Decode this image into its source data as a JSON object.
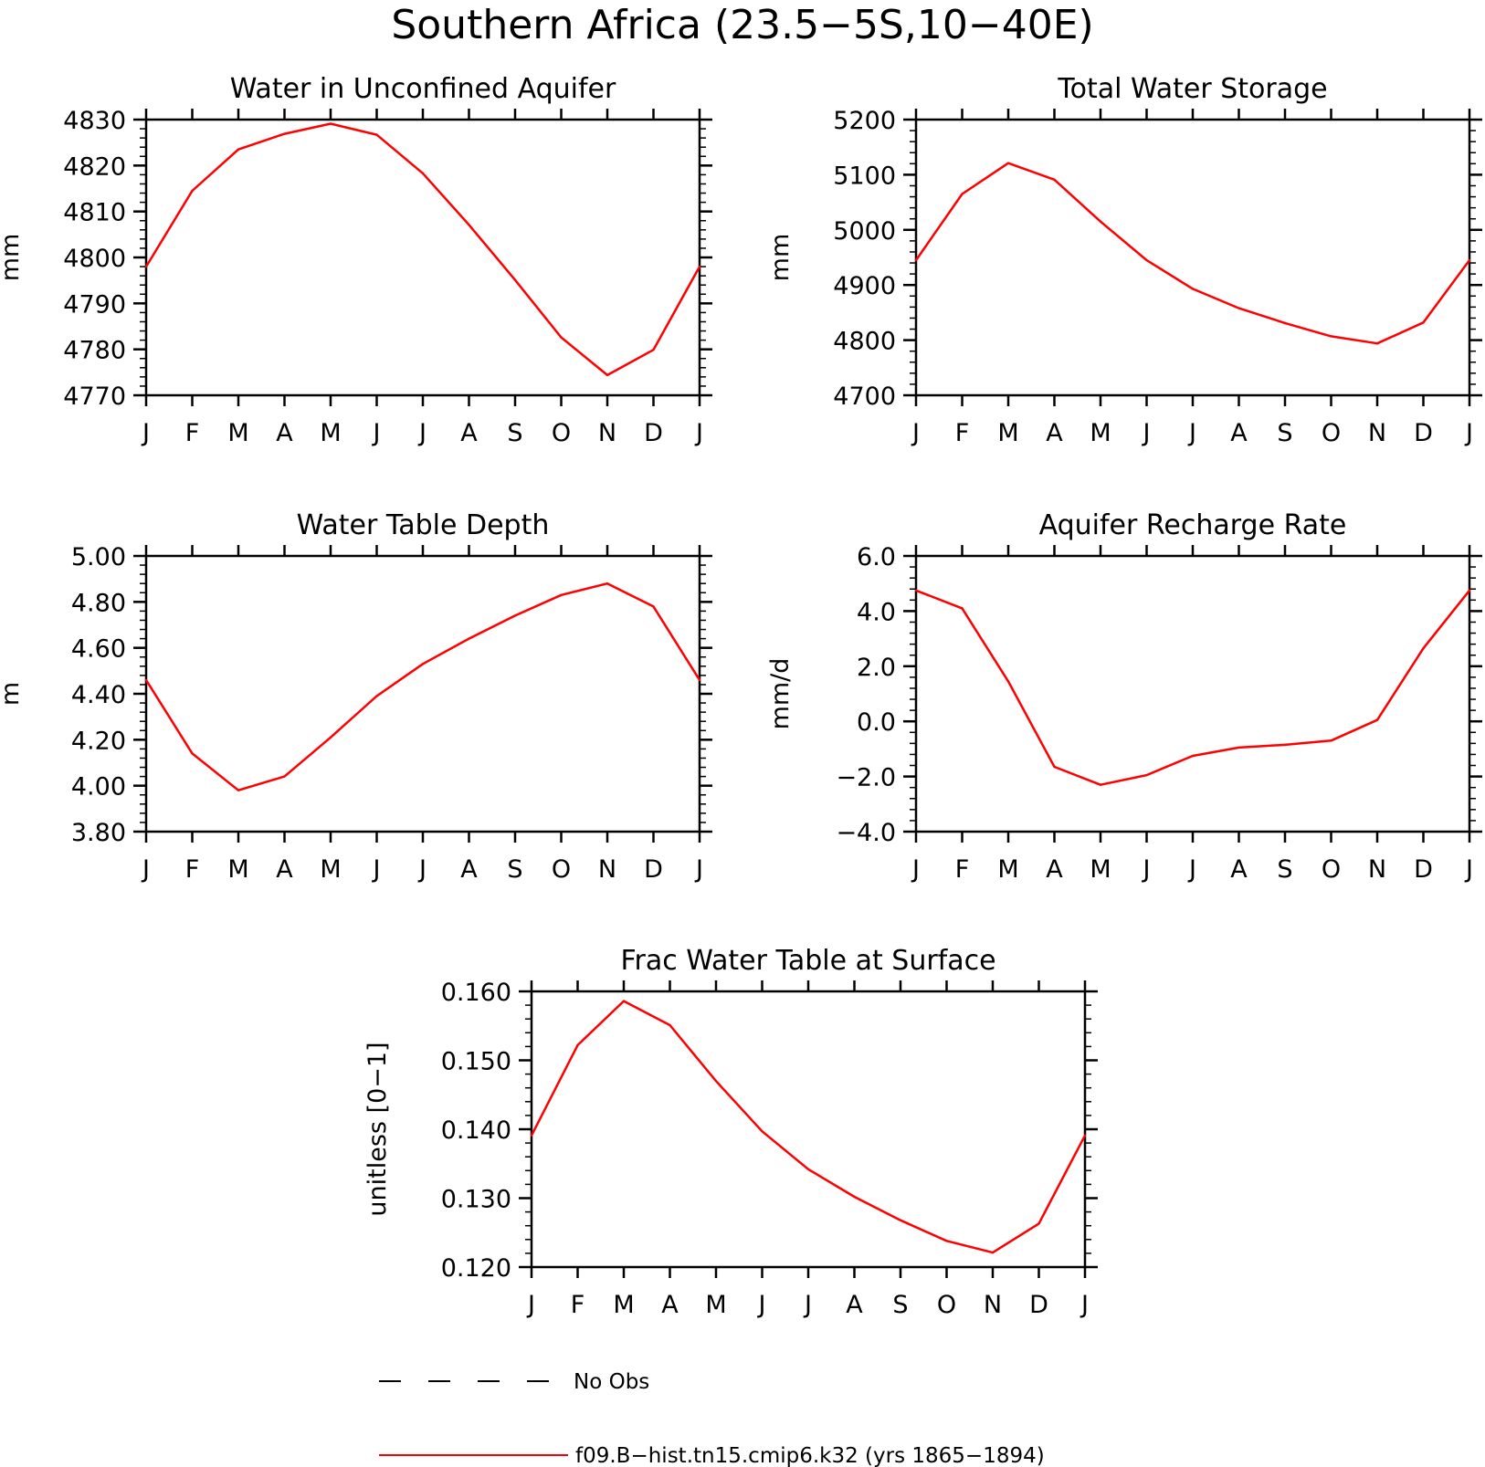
{
  "figure": {
    "title": "Southern Africa (23.5−5S,10−40E)",
    "legend": {
      "items": [
        {
          "label": "No Obs",
          "style": "dashed",
          "color": "#000000"
        },
        {
          "label": "f09.B−hist.tn15.cmip6.k32 (yrs 1865−1894)",
          "style": "solid",
          "color": "#ff0000"
        }
      ]
    }
  },
  "chart_data": [
    {
      "type": "line",
      "title": "Water in Unconfined Aquifer",
      "xlabel": "",
      "ylabel": "mm",
      "categories": [
        "J",
        "F",
        "M",
        "A",
        "M",
        "J",
        "J",
        "A",
        "S",
        "O",
        "N",
        "D",
        "J"
      ],
      "ylim": [
        4770,
        4830
      ],
      "yticks": [
        "4770",
        "4780",
        "4790",
        "4800",
        "4810",
        "4820",
        "4830"
      ],
      "series": [
        {
          "color": "#ff0000",
          "values": [
            4798,
            4814.5,
            4823.5,
            4826.9,
            4829.1,
            4826.7,
            4818.3,
            4807.1,
            4795.1,
            4782.6,
            4774.4,
            4779.9,
            4798
          ]
        }
      ]
    },
    {
      "type": "line",
      "title": "Total Water Storage",
      "xlabel": "",
      "ylabel": "mm",
      "categories": [
        "J",
        "F",
        "M",
        "A",
        "M",
        "J",
        "J",
        "A",
        "S",
        "O",
        "N",
        "D",
        "J"
      ],
      "ylim": [
        4700,
        5200
      ],
      "yticks": [
        "4700",
        "4800",
        "4900",
        "5000",
        "5100",
        "5200"
      ],
      "series": [
        {
          "color": "#ff0000",
          "values": [
            4945,
            5065,
            5121,
            5091,
            5015,
            4945,
            4893,
            4858,
            4831,
            4807,
            4794,
            4832,
            4945
          ]
        }
      ]
    },
    {
      "type": "line",
      "title": "Water Table Depth",
      "xlabel": "",
      "ylabel": "m",
      "categories": [
        "J",
        "F",
        "M",
        "A",
        "M",
        "J",
        "J",
        "A",
        "S",
        "O",
        "N",
        "D",
        "J"
      ],
      "ylim": [
        3.8,
        5.0
      ],
      "yticks": [
        "3.80",
        "4.00",
        "4.20",
        "4.40",
        "4.60",
        "4.80",
        "5.00"
      ],
      "series": [
        {
          "color": "#ff0000",
          "values": [
            4.46,
            4.14,
            3.98,
            4.04,
            4.21,
            4.39,
            4.53,
            4.64,
            4.74,
            4.83,
            4.88,
            4.78,
            4.46
          ]
        }
      ]
    },
    {
      "type": "line",
      "title": "Aquifer Recharge Rate",
      "xlabel": "",
      "ylabel": "mm/d",
      "categories": [
        "J",
        "F",
        "M",
        "A",
        "M",
        "J",
        "J",
        "A",
        "S",
        "O",
        "N",
        "D",
        "J"
      ],
      "ylim": [
        -4.0,
        6.0
      ],
      "yticks": [
        "−4.0",
        "−2.0",
        "0.0",
        "2.0",
        "4.0",
        "6.0"
      ],
      "series": [
        {
          "color": "#ff0000",
          "values": [
            4.75,
            4.1,
            1.45,
            -1.65,
            -2.3,
            -1.95,
            -1.25,
            -0.95,
            -0.85,
            -0.7,
            0.05,
            2.65,
            4.75
          ]
        }
      ]
    },
    {
      "type": "line",
      "title": "Frac Water Table at Surface",
      "xlabel": "",
      "ylabel": "unitless [0−1]",
      "categories": [
        "J",
        "F",
        "M",
        "A",
        "M",
        "J",
        "J",
        "A",
        "S",
        "O",
        "N",
        "D",
        "J"
      ],
      "ylim": [
        0.12,
        0.16
      ],
      "yticks": [
        "0.120",
        "0.130",
        "0.140",
        "0.150",
        "0.160"
      ],
      "series": [
        {
          "color": "#ff0000",
          "values": [
            0.1391,
            0.1522,
            0.1586,
            0.1551,
            0.147,
            0.1397,
            0.1342,
            0.1302,
            0.1268,
            0.1238,
            0.1221,
            0.1263,
            0.1391
          ]
        }
      ]
    }
  ]
}
